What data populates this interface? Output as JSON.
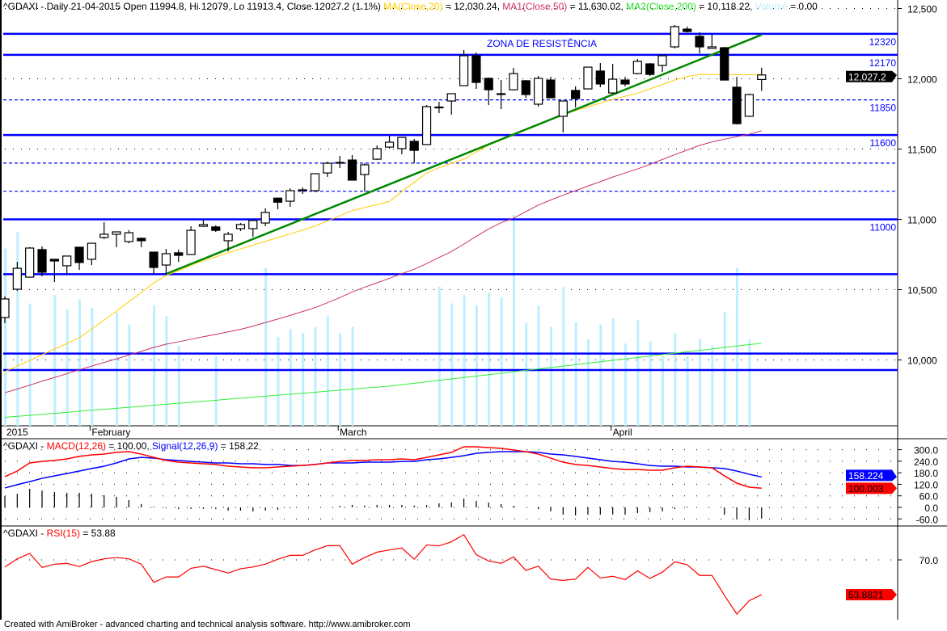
{
  "header": {
    "symbol_line": "^GDAXI - Daily 21-04-2015 Open 11994.8, Hi 12079, Lo 11913.4, Close 12027.2 (1.1%)",
    "ma20_label": "MA(Close,20)",
    "ma20_value": "= 12,030.24,",
    "ma50_label": "MA1(Close,50)",
    "ma50_value": "= 11,630.02,",
    "ma200_label": "MA2(Close,200)",
    "ma200_value": "= 10,118.22,",
    "volume_label": "Volume",
    "volume_value": "= 0.00"
  },
  "macd_header": {
    "symbol": "^GDAXI - ",
    "macd_label": "MACD(12,26)",
    "macd_value": " = 100.00, ",
    "signal_label": "Signal(12,26,9)",
    "signal_value": " = 158.22"
  },
  "rsi_header": {
    "symbol": "^GDAXI - ",
    "rsi_label": "RSI(15)",
    "rsi_value": " = 53.88"
  },
  "footer": "Created with AmiBroker - advanced charting and technical analysis software. http://www.amibroker.com",
  "colors": {
    "ma20": "#ffcc00",
    "ma50": "#cc3366",
    "ma200": "#33ee33",
    "volume": "#bfeeff",
    "levels": "#0000ff",
    "trendline": "#008800",
    "macd": "#ff0000",
    "signal": "#0000ff",
    "rsi": "#ff0000"
  },
  "chart_data": [
    {
      "type": "candlestick",
      "symbol": "^GDAXI",
      "period": "Daily",
      "x_ticks": [
        {
          "index": 0,
          "label": "2015"
        },
        {
          "index": 7,
          "label": "February"
        },
        {
          "index": 27,
          "label": "March"
        },
        {
          "index": 49,
          "label": "April"
        }
      ],
      "y_ticks": [
        "12,500",
        "12,000",
        "11,500",
        "11,000",
        "10,500",
        "10,000"
      ],
      "y_tick_values": [
        12500,
        12000,
        11500,
        11000,
        10500,
        10000
      ],
      "ylim": [
        9450,
        12560
      ],
      "grid": "dotted",
      "last_price_label": "12,027.2",
      "open": [
        10302,
        10503,
        10589,
        10785,
        10716,
        10670,
        10802,
        10716,
        10871,
        10894,
        10842,
        10865,
        10767,
        10675,
        10762,
        10750,
        10951,
        10946,
        10848,
        10934,
        10934,
        10974,
        11151,
        11129,
        11207,
        11204,
        11330,
        11405,
        11422,
        11319,
        11428,
        11514,
        11503,
        11555,
        11532,
        11796,
        11842,
        11951,
        12164,
        12003,
        11894,
        11922,
        11986,
        11819,
        11991,
        11733,
        11917,
        11928,
        12055,
        11899,
        11991,
        12037,
        12106,
        12095,
        12227,
        12353,
        12302,
        12216,
        12221,
        11940,
        11733,
        11994.8
      ],
      "high": [
        10451,
        10698,
        10802,
        10808,
        10716,
        10739,
        10802,
        10830,
        10980,
        10911,
        10923,
        10871,
        10767,
        10790,
        10785,
        10951,
        11003,
        10957,
        10911,
        10974,
        10998,
        11078,
        11151,
        11221,
        11227,
        11325,
        11411,
        11451,
        11457,
        11399,
        11526,
        11595,
        11583,
        11572,
        11813,
        11836,
        11894,
        12204,
        12187,
        12009,
        11991,
        12078,
        11991,
        12020,
        12014,
        11842,
        11946,
        12083,
        12112,
        12106,
        12014,
        12141,
        12112,
        12170,
        12382,
        12371,
        12330,
        12313,
        12227,
        12014,
        11894,
        12079
      ],
      "low": [
        10262,
        10491,
        10585,
        10595,
        10555,
        10612,
        10641,
        10675,
        10859,
        10802,
        10830,
        10802,
        10612,
        10612,
        10698,
        10750,
        10946,
        10911,
        10773,
        10917,
        10876,
        10951,
        11072,
        11089,
        11181,
        11193,
        11302,
        11365,
        11279,
        11198,
        11422,
        11503,
        11463,
        11399,
        11532,
        11756,
        11744,
        11951,
        11928,
        11813,
        11784,
        11917,
        11865,
        11802,
        11865,
        11618,
        11796,
        11928,
        11940,
        11894,
        11946,
        12031,
        12020,
        12049,
        12216,
        12330,
        12181,
        12216,
        11991,
        11675,
        11733,
        11913.4
      ],
      "close": [
        10434,
        10652,
        10796,
        10624,
        10704,
        10739,
        10693,
        10830,
        10894,
        10911,
        10905,
        10848,
        10658,
        10756,
        10744,
        10922,
        10963,
        10922,
        10894,
        10963,
        10992,
        11049,
        11122,
        11204,
        11210,
        11325,
        11399,
        11402,
        11279,
        11388,
        11503,
        11549,
        11583,
        11491,
        11802,
        11799,
        11894,
        12164,
        11974,
        11922,
        11891,
        12037,
        11888,
        12003,
        11865,
        11842,
        11859,
        12083,
        11963,
        11997,
        11963,
        12124,
        12031,
        12164,
        12371,
        12336,
        12227,
        12227,
        11991,
        11681,
        11888,
        12027.2
      ],
      "volume_relative_pct": [
        84,
        92,
        58,
        0,
        62,
        55,
        60,
        56,
        0,
        54,
        48,
        0,
        57,
        52,
        38,
        0,
        0,
        33,
        0,
        0,
        0,
        75,
        42,
        46,
        44,
        47,
        52,
        44,
        47,
        0,
        0,
        0,
        0,
        0,
        0,
        66,
        58,
        62,
        57,
        63,
        61,
        100,
        49,
        57,
        47,
        66,
        49,
        41,
        48,
        51,
        39,
        50,
        40,
        33,
        44,
        33,
        41,
        38,
        54,
        75,
        41,
        0
      ],
      "ma20": [
        9917,
        9956,
        9996,
        10038,
        10077,
        10117,
        10159,
        10219,
        10283,
        10347,
        10415,
        10479,
        10547,
        10601,
        10635,
        10672,
        10706,
        10733,
        10763,
        10790,
        10817,
        10844,
        10870,
        10897,
        10924,
        10952,
        10988,
        11025,
        11062,
        11084,
        11105,
        11128,
        11198,
        11264,
        11329,
        11368,
        11398,
        11428,
        11480,
        11528,
        11563,
        11600,
        11635,
        11670,
        11707,
        11742,
        11774,
        11801,
        11827,
        11854,
        11875,
        11897,
        11928,
        11959,
        11991,
        12016,
        12031,
        12031,
        12030,
        12029,
        12028,
        12030.24
      ],
      "ma50": [
        9767,
        9793,
        9820,
        9849,
        9875,
        9902,
        9930,
        9956,
        9982,
        10008,
        10035,
        10061,
        10089,
        10112,
        10129,
        10147,
        10165,
        10182,
        10200,
        10218,
        10240,
        10266,
        10291,
        10317,
        10344,
        10372,
        10407,
        10443,
        10484,
        10517,
        10549,
        10580,
        10614,
        10645,
        10685,
        10729,
        10771,
        10824,
        10879,
        10932,
        10976,
        11009,
        11055,
        11101,
        11138,
        11172,
        11204,
        11237,
        11268,
        11301,
        11330,
        11359,
        11391,
        11426,
        11460,
        11493,
        11526,
        11551,
        11570,
        11588,
        11606,
        11630.02
      ],
      "ma200": [
        9592,
        9599,
        9606,
        9613,
        9620,
        9627,
        9635,
        9642,
        9649,
        9656,
        9663,
        9670,
        9678,
        9685,
        9692,
        9699,
        9706,
        9713,
        9721,
        9728,
        9735,
        9742,
        9749,
        9756,
        9763,
        9770,
        9778,
        9785,
        9792,
        9800,
        9807,
        9814,
        9824,
        9834,
        9844,
        9855,
        9865,
        9875,
        9885,
        9895,
        9905,
        9916,
        9926,
        9936,
        9946,
        9956,
        9966,
        9977,
        9987,
        9997,
        10007,
        10017,
        10028,
        10038,
        10048,
        10058,
        10068,
        10078,
        10089,
        10099,
        10109,
        10118.22
      ],
      "levels": [
        {
          "value": 12320,
          "style": "solid",
          "label": "12320"
        },
        {
          "value": 12170,
          "style": "solid",
          "label": "12170"
        },
        {
          "value": 11850,
          "style": "dashed",
          "label": "11850"
        },
        {
          "value": 11600,
          "style": "solid",
          "label": "11600"
        },
        {
          "value": 11400,
          "style": "dashed",
          "label": ""
        },
        {
          "value": 11200,
          "style": "dashed",
          "label": ""
        },
        {
          "value": 11000,
          "style": "solid",
          "label": "11000"
        },
        {
          "value": 10610,
          "style": "solid",
          "label": ""
        },
        {
          "value": 10045,
          "style": "solid",
          "label": ""
        },
        {
          "value": 9928,
          "style": "solid",
          "label": ""
        }
      ],
      "trendline": {
        "from_index": 13,
        "from_value": 10612,
        "to_index": 61,
        "to_value": 12313
      },
      "annotation": "ZONA DE RESISTÊNCIA"
    },
    {
      "type": "line",
      "indicator": "MACD",
      "y_ticks": [
        "300.0",
        "240.0",
        "180.0",
        "120.0",
        "60.0",
        "0.0",
        "-60.0"
      ],
      "y_tick_values": [
        300,
        240,
        180,
        120,
        60,
        0,
        -60
      ],
      "ylim": [
        -92,
        352
      ],
      "signal_label": "158.224",
      "macd_label": "100.003",
      "macd": [
        160,
        189,
        231,
        239,
        244,
        252,
        265,
        273,
        277,
        286,
        290,
        277,
        260,
        244,
        235,
        231,
        227,
        223,
        214,
        210,
        206,
        206,
        210,
        214,
        218,
        223,
        231,
        239,
        244,
        244,
        248,
        248,
        252,
        248,
        260,
        273,
        286,
        315,
        315,
        311,
        307,
        298,
        290,
        277,
        256,
        235,
        223,
        218,
        210,
        202,
        197,
        197,
        193,
        193,
        206,
        214,
        210,
        206,
        164,
        126,
        105,
        100.0
      ],
      "signal": [
        101,
        118,
        134,
        151,
        164,
        176,
        189,
        202,
        214,
        231,
        252,
        260,
        256,
        248,
        244,
        239,
        235,
        231,
        231,
        227,
        227,
        223,
        223,
        218,
        218,
        223,
        231,
        231,
        231,
        235,
        235,
        235,
        239,
        239,
        248,
        252,
        260,
        269,
        281,
        286,
        290,
        290,
        290,
        286,
        277,
        273,
        265,
        256,
        248,
        239,
        235,
        227,
        218,
        214,
        214,
        210,
        210,
        206,
        202,
        189,
        172,
        158.22
      ]
    },
    {
      "type": "line",
      "indicator": "RSI(15)",
      "y_ticks": [
        "70.0"
      ],
      "y_tick_values": [
        70
      ],
      "ylim": [
        42,
        85
      ],
      "last_label": "53.8821",
      "rsi": [
        66.7,
        70.5,
        73.0,
        66.5,
        68.0,
        68.4,
        66.9,
        69.2,
        70.5,
        71.1,
        70.5,
        68.0,
        59.6,
        62.1,
        62.1,
        66.1,
        67.1,
        65.5,
        63.9,
        65.9,
        66.7,
        68.0,
        70.3,
        72.1,
        72.1,
        74.6,
        76.6,
        76.6,
        68.0,
        71.1,
        73.6,
        74.6,
        75.5,
        70.3,
        76.9,
        76.5,
        78.4,
        81.7,
        72.4,
        69.5,
        68.4,
        71.4,
        65.1,
        67.1,
        61.1,
        60.5,
        61.1,
        66.5,
        61.6,
        62.4,
        60.9,
        64.9,
        61.4,
        64.3,
        69.1,
        67.8,
        62.8,
        62.8,
        53.6,
        44.9,
        51.1,
        53.88
      ]
    }
  ]
}
